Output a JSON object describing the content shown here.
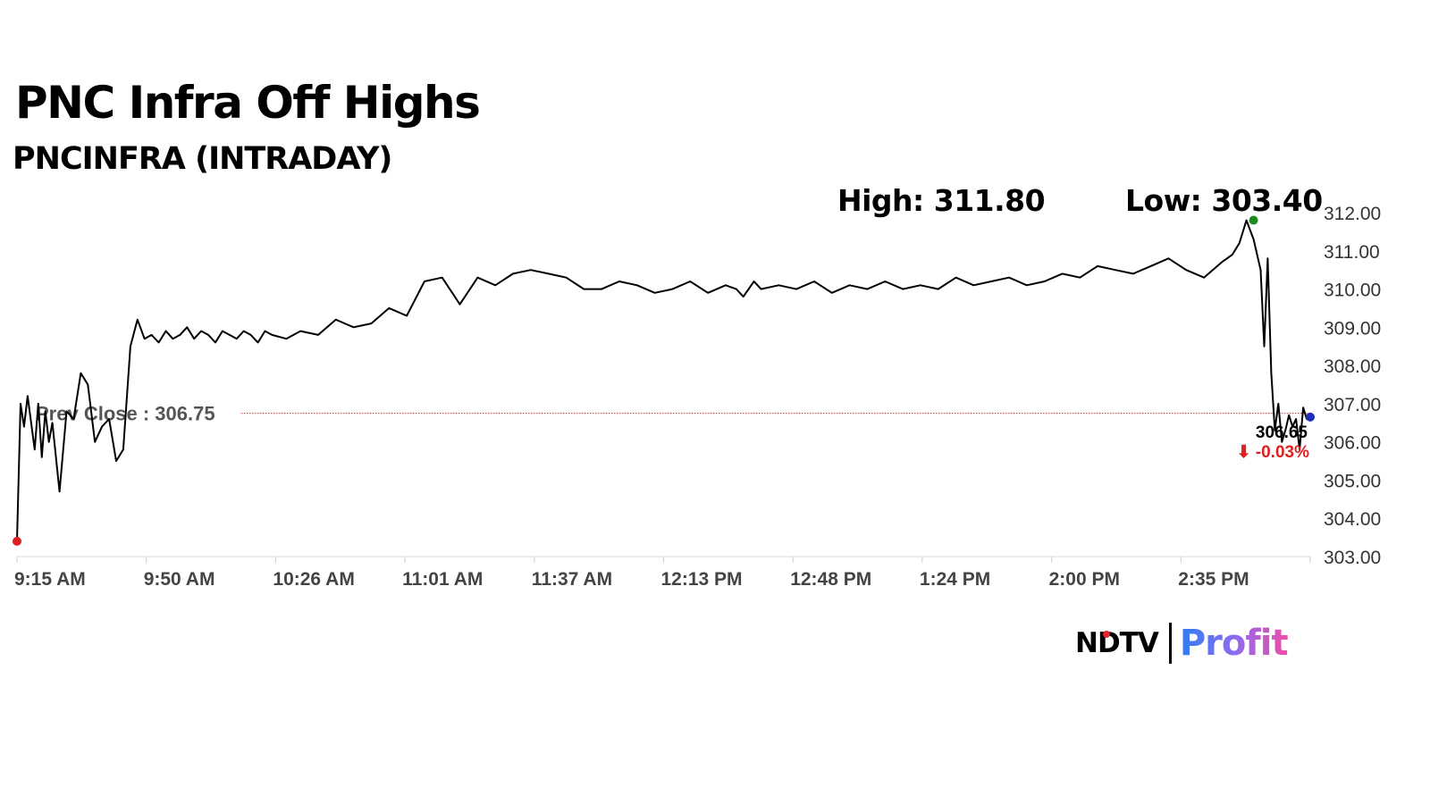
{
  "header": {
    "title": "PNC Infra Off Highs",
    "subtitle": "PNCINFRA (INTRADAY)"
  },
  "stats": {
    "high_label": "High: 311.80",
    "low_label": "Low: 303.40"
  },
  "chart_data": {
    "type": "line",
    "title": "PNC Infra Off Highs",
    "subtitle": "PNCINFRA (INTRADAY)",
    "x_tick_labels": [
      "9:15 AM",
      "9:50 AM",
      "10:26 AM",
      "11:01 AM",
      "11:37 AM",
      "12:13 PM",
      "12:48 PM",
      "1:24 PM",
      "2:00 PM",
      "2:35 PM"
    ],
    "y_tick_labels": [
      "312.00",
      "311.00",
      "310.00",
      "309.00",
      "308.00",
      "307.00",
      "306.00",
      "305.00",
      "304.00",
      "303.00"
    ],
    "ylim": [
      303,
      312
    ],
    "x_unit": "minutes since 9:15 AM",
    "xlim": [
      0,
      365
    ],
    "series": [
      {
        "color": "#000000",
        "x": [
          0,
          1,
          2,
          3,
          5,
          6,
          7,
          8,
          9,
          10,
          12,
          14,
          16,
          18,
          20,
          22,
          24,
          26,
          28,
          30,
          32,
          34,
          36,
          38,
          40,
          42,
          44,
          46,
          48,
          50,
          52,
          54,
          56,
          58,
          60,
          62,
          64,
          66,
          68,
          70,
          72,
          76,
          80,
          85,
          90,
          95,
          100,
          105,
          110,
          115,
          120,
          125,
          130,
          135,
          140,
          145,
          150,
          155,
          160,
          165,
          170,
          175,
          180,
          185,
          190,
          195,
          200,
          203,
          205,
          208,
          210,
          215,
          220,
          225,
          230,
          235,
          240,
          245,
          250,
          255,
          260,
          265,
          270,
          275,
          280,
          285,
          290,
          295,
          300,
          305,
          310,
          315,
          320,
          325,
          330,
          335,
          340,
          343,
          345,
          347,
          349,
          351,
          352,
          353,
          354,
          355,
          356,
          357,
          358,
          359,
          360,
          361,
          362,
          363,
          364,
          365
        ],
        "y": [
          303.4,
          307.0,
          306.4,
          307.2,
          305.8,
          307.0,
          305.6,
          306.8,
          306.0,
          306.5,
          304.7,
          306.8,
          306.6,
          307.8,
          307.5,
          306.0,
          306.4,
          306.6,
          305.5,
          305.8,
          308.5,
          309.2,
          308.7,
          308.8,
          308.6,
          308.9,
          308.7,
          308.8,
          309.0,
          308.7,
          308.9,
          308.8,
          308.6,
          308.9,
          308.8,
          308.7,
          308.9,
          308.8,
          308.6,
          308.9,
          308.8,
          308.7,
          308.9,
          308.8,
          309.2,
          309.0,
          309.1,
          309.5,
          309.3,
          310.2,
          310.3,
          309.6,
          310.3,
          310.1,
          310.4,
          310.5,
          310.4,
          310.3,
          310.0,
          310.0,
          310.2,
          310.1,
          309.9,
          310.0,
          310.2,
          309.9,
          310.1,
          310.0,
          309.8,
          310.2,
          310.0,
          310.1,
          310.0,
          310.2,
          309.9,
          310.1,
          310.0,
          310.2,
          310.0,
          310.1,
          310.0,
          310.3,
          310.1,
          310.2,
          310.3,
          310.1,
          310.2,
          310.4,
          310.3,
          310.6,
          310.5,
          310.4,
          310.6,
          310.8,
          310.5,
          310.3,
          310.7,
          310.9,
          311.2,
          311.8,
          311.3,
          310.5,
          308.5,
          310.8,
          307.8,
          306.3,
          307.0,
          306.0,
          306.3,
          306.7,
          306.4,
          306.6,
          305.8,
          306.9,
          306.6,
          306.65
        ]
      }
    ],
    "reference_line": {
      "label": "Prev Close : 306.75",
      "value": 306.75,
      "color": "#d23a3a"
    },
    "high_point": {
      "x": 349,
      "y": 311.8,
      "color": "#1f8a1f"
    },
    "low_point": {
      "x": 0,
      "y": 303.4,
      "color": "#e02020"
    },
    "last_point": {
      "x": 365,
      "y": 306.65,
      "color": "#1f2fb5"
    },
    "last_price_label": "306.65",
    "change_label": "⬇ -0.03%",
    "change_color": "#e02020",
    "grid": false,
    "legend": "none"
  },
  "branding": {
    "ndtv": "NDTV",
    "profit": "Profit"
  }
}
